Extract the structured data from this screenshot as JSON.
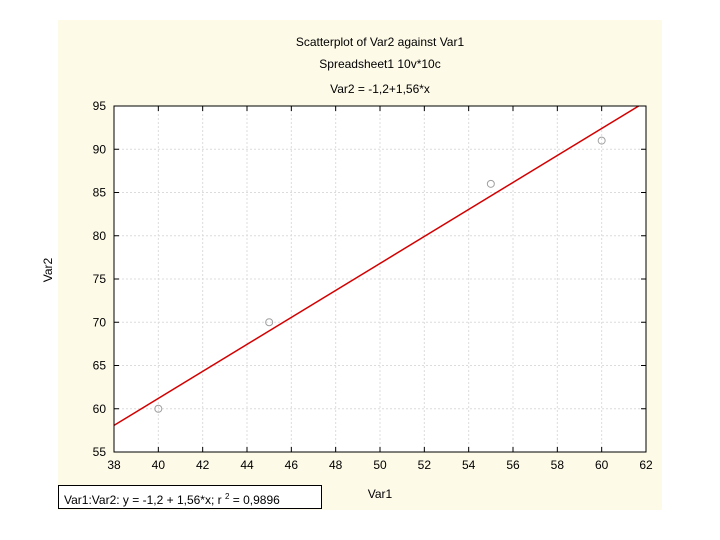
{
  "chart_data": {
    "type": "scatter",
    "title": "Scatterplot of Var2 against Var1",
    "subtitle": "Spreadsheet1 10v*10c",
    "equation_label": "Var2 = -1,2+1,56*x",
    "xlabel": "Var1",
    "ylabel": "Var2",
    "xlim": [
      38,
      62
    ],
    "ylim": [
      55,
      95
    ],
    "x_ticks": [
      "38",
      "40",
      "42",
      "44",
      "46",
      "48",
      "50",
      "52",
      "54",
      "56",
      "58",
      "60",
      "62"
    ],
    "y_ticks": [
      "55",
      "60",
      "65",
      "70",
      "75",
      "80",
      "85",
      "90",
      "95"
    ],
    "grid": true,
    "points": {
      "x": [
        40,
        45,
        55,
        60
      ],
      "y": [
        60,
        70,
        86,
        91
      ]
    },
    "fit_line": {
      "intercept": -1.2,
      "slope": 1.56
    },
    "legend": {
      "prefix": "Var1:Var2:   y = -1,2 + 1,56*x; r ",
      "superscript": "2",
      "suffix": " = 0,9896"
    },
    "colors": {
      "panel_background": "#fdfae8",
      "plot_background": "#ffffff",
      "grid": "#dcdcdc",
      "fit_line": "#d40000",
      "marker": "#a0a0a0",
      "axis": "#000000"
    }
  }
}
